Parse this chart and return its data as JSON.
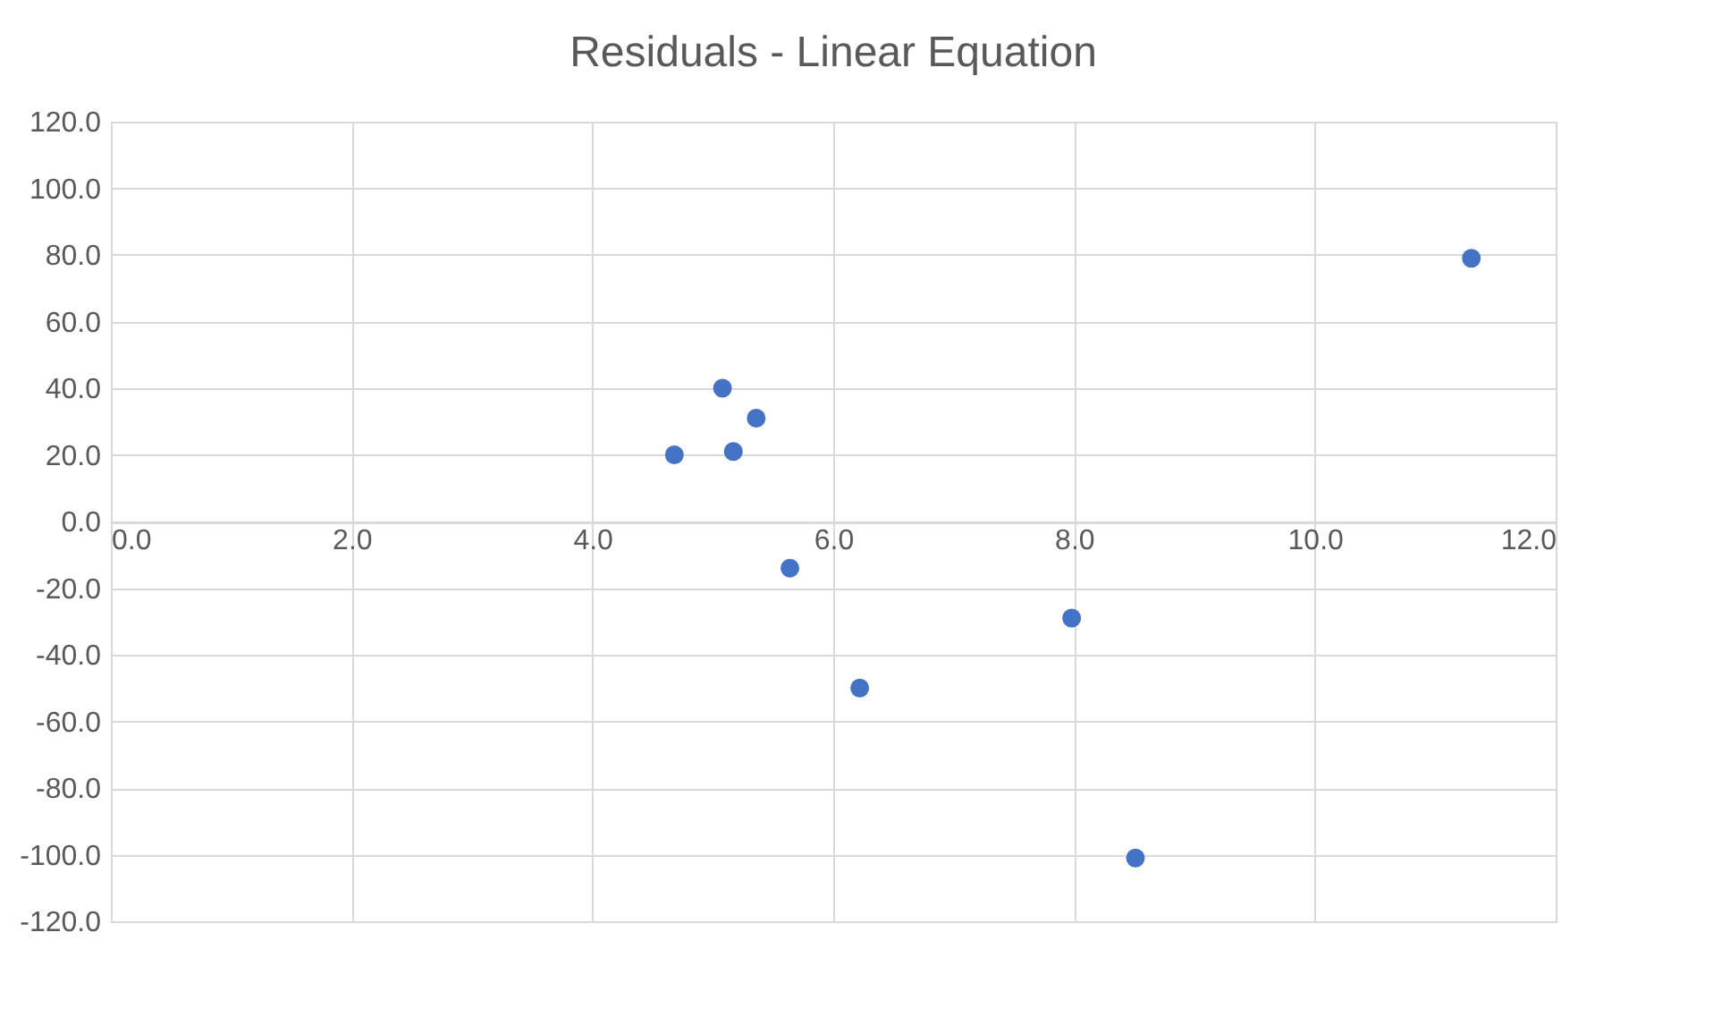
{
  "chart_data": {
    "type": "scatter",
    "title": "Residuals - Linear Equation",
    "series": [
      {
        "color": "#4472c4",
        "x": [
          4.68,
          5.08,
          5.36,
          5.17,
          5.64,
          6.22,
          7.98,
          8.51,
          11.3
        ],
        "values": [
          20,
          40,
          31,
          21,
          -14,
          -50,
          -29,
          -101,
          79
        ]
      }
    ],
    "xlim": [
      0,
      12
    ],
    "xticks": [
      {
        "value": 0,
        "label": "0.0"
      },
      {
        "value": 2,
        "label": "2.0"
      },
      {
        "value": 4,
        "label": "4.0"
      },
      {
        "value": 6,
        "label": "6.0"
      },
      {
        "value": 8,
        "label": "8.0"
      },
      {
        "value": 10,
        "label": "10.0"
      },
      {
        "value": 12,
        "label": "12.0"
      }
    ],
    "ylim": [
      -120,
      120
    ],
    "yticks": [
      {
        "value": -120,
        "label": "-120.0"
      },
      {
        "value": -100,
        "label": "-100.0"
      },
      {
        "value": -80,
        "label": "-80.0"
      },
      {
        "value": -60,
        "label": "-60.0"
      },
      {
        "value": -40,
        "label": "-40.0"
      },
      {
        "value": -20,
        "label": "-20.0"
      },
      {
        "value": 0,
        "label": "0.0"
      },
      {
        "value": 20,
        "label": "20.0"
      },
      {
        "value": 40,
        "label": "40.0"
      },
      {
        "value": 60,
        "label": "60.0"
      },
      {
        "value": 80,
        "label": "80.0"
      },
      {
        "value": 100,
        "label": "100.0"
      },
      {
        "value": 120,
        "label": "120.0"
      }
    ],
    "grid": true,
    "marker": "circle"
  }
}
